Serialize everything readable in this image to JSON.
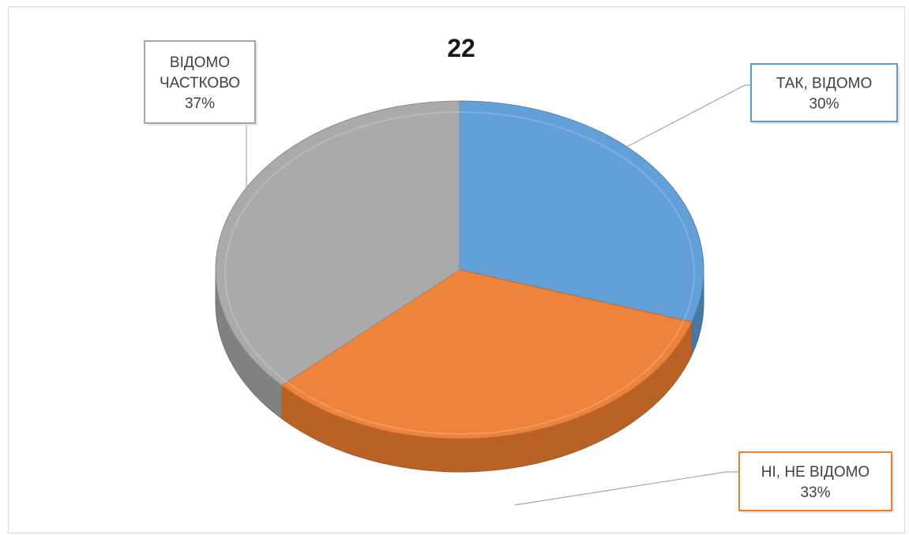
{
  "chart_data": {
    "type": "pie",
    "title": "22",
    "series": [
      {
        "label_lines": [
          "ТАК, ВІДОМО"
        ],
        "percent_label": "30%",
        "value": 30,
        "color": "#5b9bd5"
      },
      {
        "label_lines": [
          "НІ, НЕ ВІДОМО"
        ],
        "percent_label": "33%",
        "value": 33,
        "color": "#ed7d31"
      },
      {
        "label_lines": [
          "ВІДОМО",
          "ЧАСТКОВО"
        ],
        "percent_label": "37%",
        "value": 37,
        "color": "#a5a5a5"
      }
    ],
    "style": "3d",
    "legend": "none",
    "data_labels": "callouts"
  }
}
